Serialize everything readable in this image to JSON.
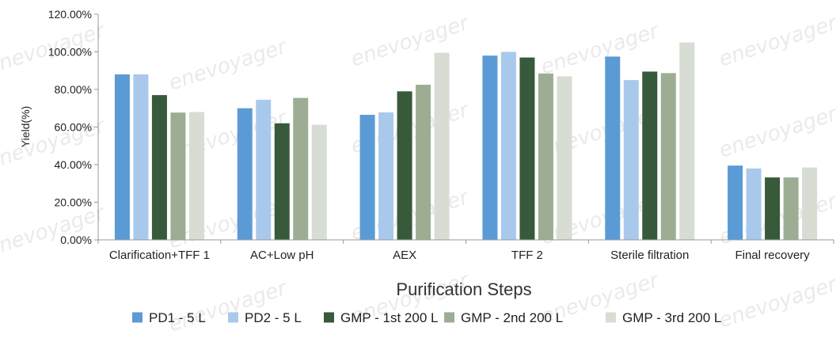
{
  "watermark": "enevoyager",
  "chart_data": {
    "type": "bar",
    "title": "",
    "xlabel": "Purification Steps",
    "ylabel": "Yield(%)",
    "ylim": [
      0,
      120
    ],
    "yticks": [
      0,
      20,
      40,
      60,
      80,
      100,
      120
    ],
    "ytick_labels": [
      "0.00%",
      "20.00%",
      "40.00%",
      "60.00%",
      "80.00%",
      "100.00%",
      "120.00%"
    ],
    "grid": false,
    "legend_position": "bottom",
    "categories": [
      "Clarification+TFF 1",
      "AC+Low pH",
      "AEX",
      "TFF 2",
      "Sterile filtration",
      "Final recovery"
    ],
    "series": [
      {
        "name": "PD1 - 5 L",
        "color": "#5b9bd5",
        "values": [
          88.0,
          70.0,
          66.5,
          98.0,
          97.5,
          39.5
        ]
      },
      {
        "name": "PD2 - 5 L",
        "color": "#a9c9ec",
        "values": [
          88.0,
          74.5,
          67.8,
          100.0,
          85.0,
          38.0
        ]
      },
      {
        "name": "GMP - 1st 200 L",
        "color": "#375a3a",
        "values": [
          77.0,
          62.0,
          79.0,
          97.0,
          89.5,
          33.2
        ]
      },
      {
        "name": "GMP - 2nd 200 L",
        "color": "#9dad93",
        "values": [
          67.7,
          75.5,
          82.5,
          88.5,
          88.7,
          33.2
        ]
      },
      {
        "name": "GMP - 3rd 200 L",
        "color": "#d8ddd4",
        "values": [
          68.0,
          61.2,
          99.5,
          87.0,
          105.0,
          38.5
        ]
      }
    ]
  }
}
